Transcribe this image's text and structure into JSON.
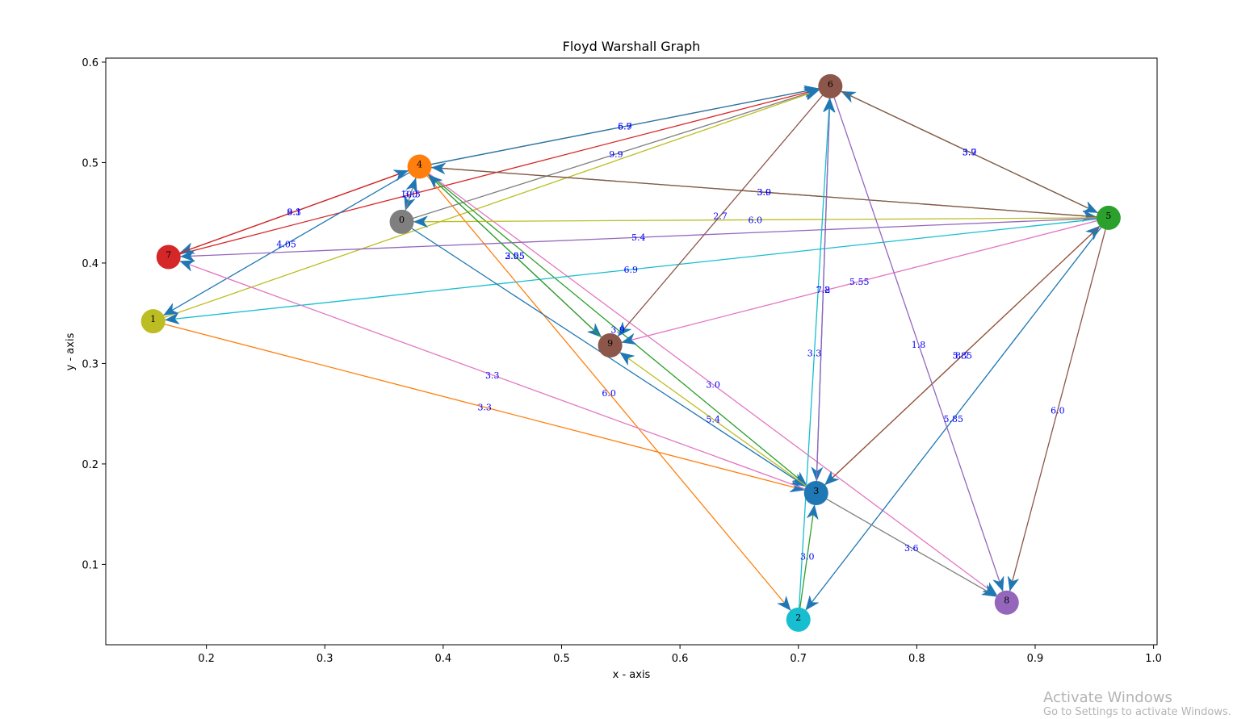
{
  "chart_data": {
    "type": "scatter",
    "title": "Floyd Warshall Graph",
    "xlabel": "x - axis",
    "ylabel": "y - axis",
    "xlim": [
      0.115,
      1.003
    ],
    "ylim": [
      0.02,
      0.604
    ],
    "xticks": [
      {
        "value": 0.2,
        "label": "0.2"
      },
      {
        "value": 0.3,
        "label": "0.3"
      },
      {
        "value": 0.4,
        "label": "0.4"
      },
      {
        "value": 0.5,
        "label": "0.5"
      },
      {
        "value": 0.6,
        "label": "0.6"
      },
      {
        "value": 0.7,
        "label": "0.7"
      },
      {
        "value": 0.8,
        "label": "0.8"
      },
      {
        "value": 0.9,
        "label": "0.9"
      },
      {
        "value": 1.0,
        "label": "1.0"
      }
    ],
    "yticks": [
      {
        "value": 0.1,
        "label": "0.1"
      },
      {
        "value": 0.2,
        "label": "0.2"
      },
      {
        "value": 0.3,
        "label": "0.3"
      },
      {
        "value": 0.4,
        "label": "0.4"
      },
      {
        "value": 0.5,
        "label": "0.5"
      },
      {
        "value": 0.6,
        "label": "0.6"
      }
    ],
    "grid": false,
    "nodes": [
      {
        "id": "0",
        "x": 0.365,
        "y": 0.441,
        "color": "#7f7f7f"
      },
      {
        "id": "1",
        "x": 0.155,
        "y": 0.342,
        "color": "#bcbd22"
      },
      {
        "id": "2",
        "x": 0.7,
        "y": 0.045,
        "color": "#17becf"
      },
      {
        "id": "3",
        "x": 0.715,
        "y": 0.171,
        "color": "#1f77b4"
      },
      {
        "id": "4",
        "x": 0.38,
        "y": 0.496,
        "color": "#ff7f0e"
      },
      {
        "id": "5",
        "x": 0.962,
        "y": 0.445,
        "color": "#2ca02c"
      },
      {
        "id": "6",
        "x": 0.727,
        "y": 0.576,
        "color": "#8c564b"
      },
      {
        "id": "7",
        "x": 0.168,
        "y": 0.406,
        "color": "#d62728"
      },
      {
        "id": "8",
        "x": 0.876,
        "y": 0.062,
        "color": "#9467bd"
      },
      {
        "id": "9",
        "x": 0.541,
        "y": 0.318,
        "color": "#8c564b"
      }
    ],
    "edges": [
      {
        "from": "4",
        "to": "6",
        "color": "#ff7f0e",
        "label": "6.9"
      },
      {
        "from": "4",
        "to": "6",
        "color": "#1f77b4",
        "label": "5.7"
      },
      {
        "from": "7",
        "to": "6",
        "color": "#d62728",
        "label": ""
      },
      {
        "from": "0",
        "to": "6",
        "color": "#7f7f7f",
        "label": "9.9"
      },
      {
        "from": "1",
        "to": "6",
        "color": "#bcbd22",
        "label": ""
      },
      {
        "from": "4",
        "to": "5",
        "color": "#2ca02c",
        "label": "3.9"
      },
      {
        "from": "5",
        "to": "4",
        "color": "#8c564b",
        "label": "3.0"
      },
      {
        "from": "4",
        "to": "7",
        "color": "#8c564b",
        "label": "8.1"
      },
      {
        "from": "7",
        "to": "4",
        "color": "#d62728",
        "label": "9.3"
      },
      {
        "from": "4",
        "to": "1",
        "color": "#1f77b4",
        "label": "4.05"
      },
      {
        "from": "4",
        "to": "0",
        "color": "#17becf",
        "label": "3.0"
      },
      {
        "from": "4",
        "to": "9",
        "color": "#7f7f7f",
        "label": "2.55"
      },
      {
        "from": "4",
        "to": "2",
        "color": "#ff7f0e",
        "label": "6.0"
      },
      {
        "from": "4",
        "to": "3",
        "color": "#2ca02c",
        "label": "3.9"
      },
      {
        "from": "4",
        "to": "8",
        "color": "#e377c2",
        "label": "3.0"
      },
      {
        "from": "5",
        "to": "0",
        "color": "#bcbd22",
        "label": "6.0"
      },
      {
        "from": "5",
        "to": "7",
        "color": "#9467bd",
        "label": "5.4"
      },
      {
        "from": "5",
        "to": "1",
        "color": "#17becf",
        "label": "6.9"
      },
      {
        "from": "5",
        "to": "9",
        "color": "#e377c2",
        "label": "5.55"
      },
      {
        "from": "5",
        "to": "6",
        "color": "#2ca02c",
        "label": "5.7"
      },
      {
        "from": "6",
        "to": "5",
        "color": "#8c564b",
        "label": "3.9"
      },
      {
        "from": "5",
        "to": "8",
        "color": "#8c564b",
        "label": "6.0"
      },
      {
        "from": "5",
        "to": "2",
        "color": "#1f77b4",
        "label": "5.85"
      },
      {
        "from": "3",
        "to": "5",
        "color": "#ff7f0e",
        "label": "8.7"
      },
      {
        "from": "5",
        "to": "3",
        "color": "#8c564b",
        "label": "5.85"
      },
      {
        "from": "6",
        "to": "9",
        "color": "#8c564b",
        "label": "2.7"
      },
      {
        "from": "6",
        "to": "8",
        "color": "#9467bd",
        "label": "1.8"
      },
      {
        "from": "6",
        "to": "3",
        "color": "#1f77b4",
        "label": "7.8"
      },
      {
        "from": "3",
        "to": "6",
        "color": "#9467bd",
        "label": "7.2"
      },
      {
        "from": "2",
        "to": "6",
        "color": "#17becf",
        "label": "3.3"
      },
      {
        "from": "0",
        "to": "3",
        "color": "#1f77b4",
        "label": ""
      },
      {
        "from": "0",
        "to": "4",
        "color": "#7f7f7f",
        "label": "10.5"
      },
      {
        "from": "1",
        "to": "3",
        "color": "#ff7f0e",
        "label": "3.3"
      },
      {
        "from": "3",
        "to": "7",
        "color": "#e377c2",
        "label": "3.3"
      },
      {
        "from": "3",
        "to": "9",
        "color": "#bcbd22",
        "label": "5.4"
      },
      {
        "from": "9",
        "to": "4",
        "color": "#2ca02c",
        "label": "3.05"
      },
      {
        "from": "3",
        "to": "8",
        "color": "#7f7f7f",
        "label": "3.6"
      },
      {
        "from": "2",
        "to": "3",
        "color": "#2ca02c",
        "label": "3.0"
      }
    ]
  },
  "watermark": {
    "title": "Activate Windows",
    "subtitle": "Go to Settings to activate Windows."
  }
}
